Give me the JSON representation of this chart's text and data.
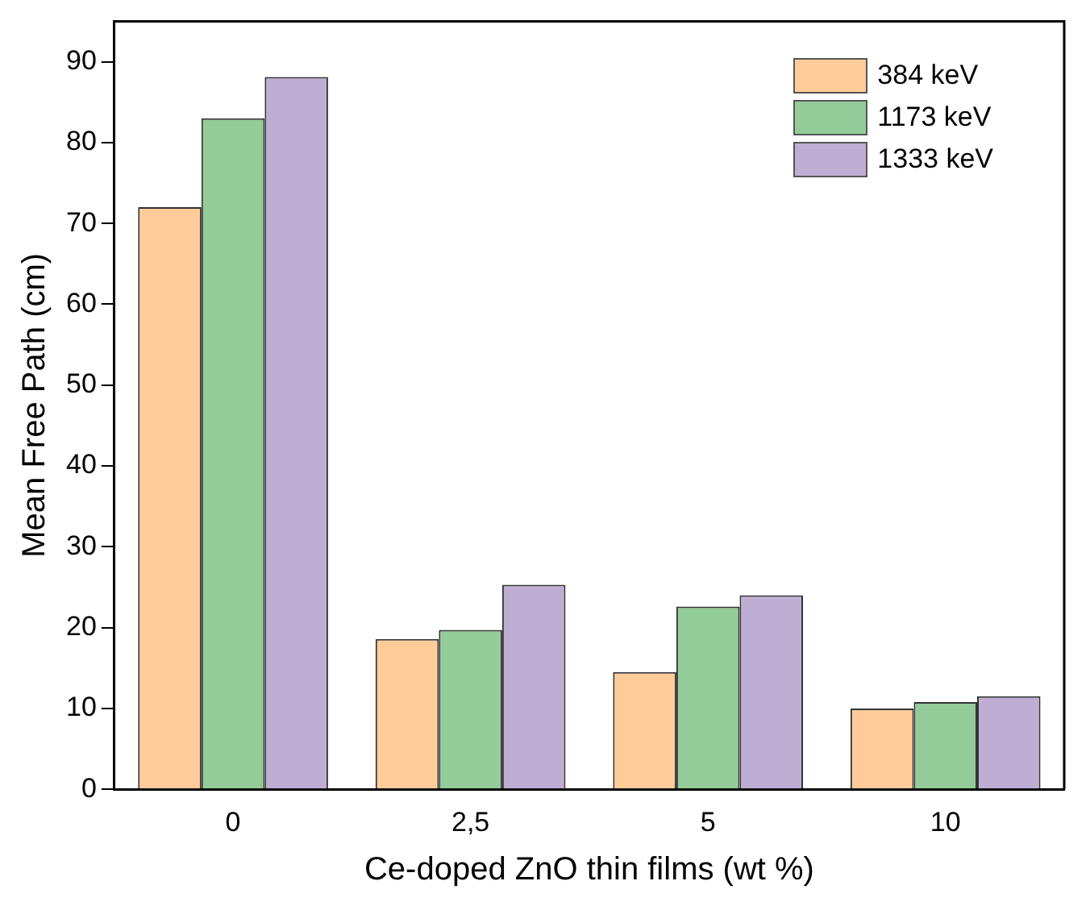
{
  "chart_data": {
    "type": "bar",
    "xlabel": "Ce-doped ZnO thin films (wt %)",
    "ylabel": "Mean Free Path (cm)",
    "categories": [
      "0",
      "2,5",
      "5",
      "10"
    ],
    "series": [
      {
        "name": "384 keV",
        "color": "#ffcc99",
        "values": [
          72,
          18.6,
          14.5,
          10.0
        ]
      },
      {
        "name": "1173 keV",
        "color": "#93cc98",
        "values": [
          83,
          19.7,
          22.6,
          10.8
        ]
      },
      {
        "name": "1333 keV",
        "color": "#bfaed3",
        "values": [
          88.1,
          25.3,
          24.0,
          11.5
        ]
      }
    ],
    "ylim": [
      0,
      95
    ],
    "yticks": [
      0,
      10,
      20,
      30,
      40,
      50,
      60,
      70,
      80,
      90
    ],
    "grid": false,
    "legend": "top right"
  }
}
